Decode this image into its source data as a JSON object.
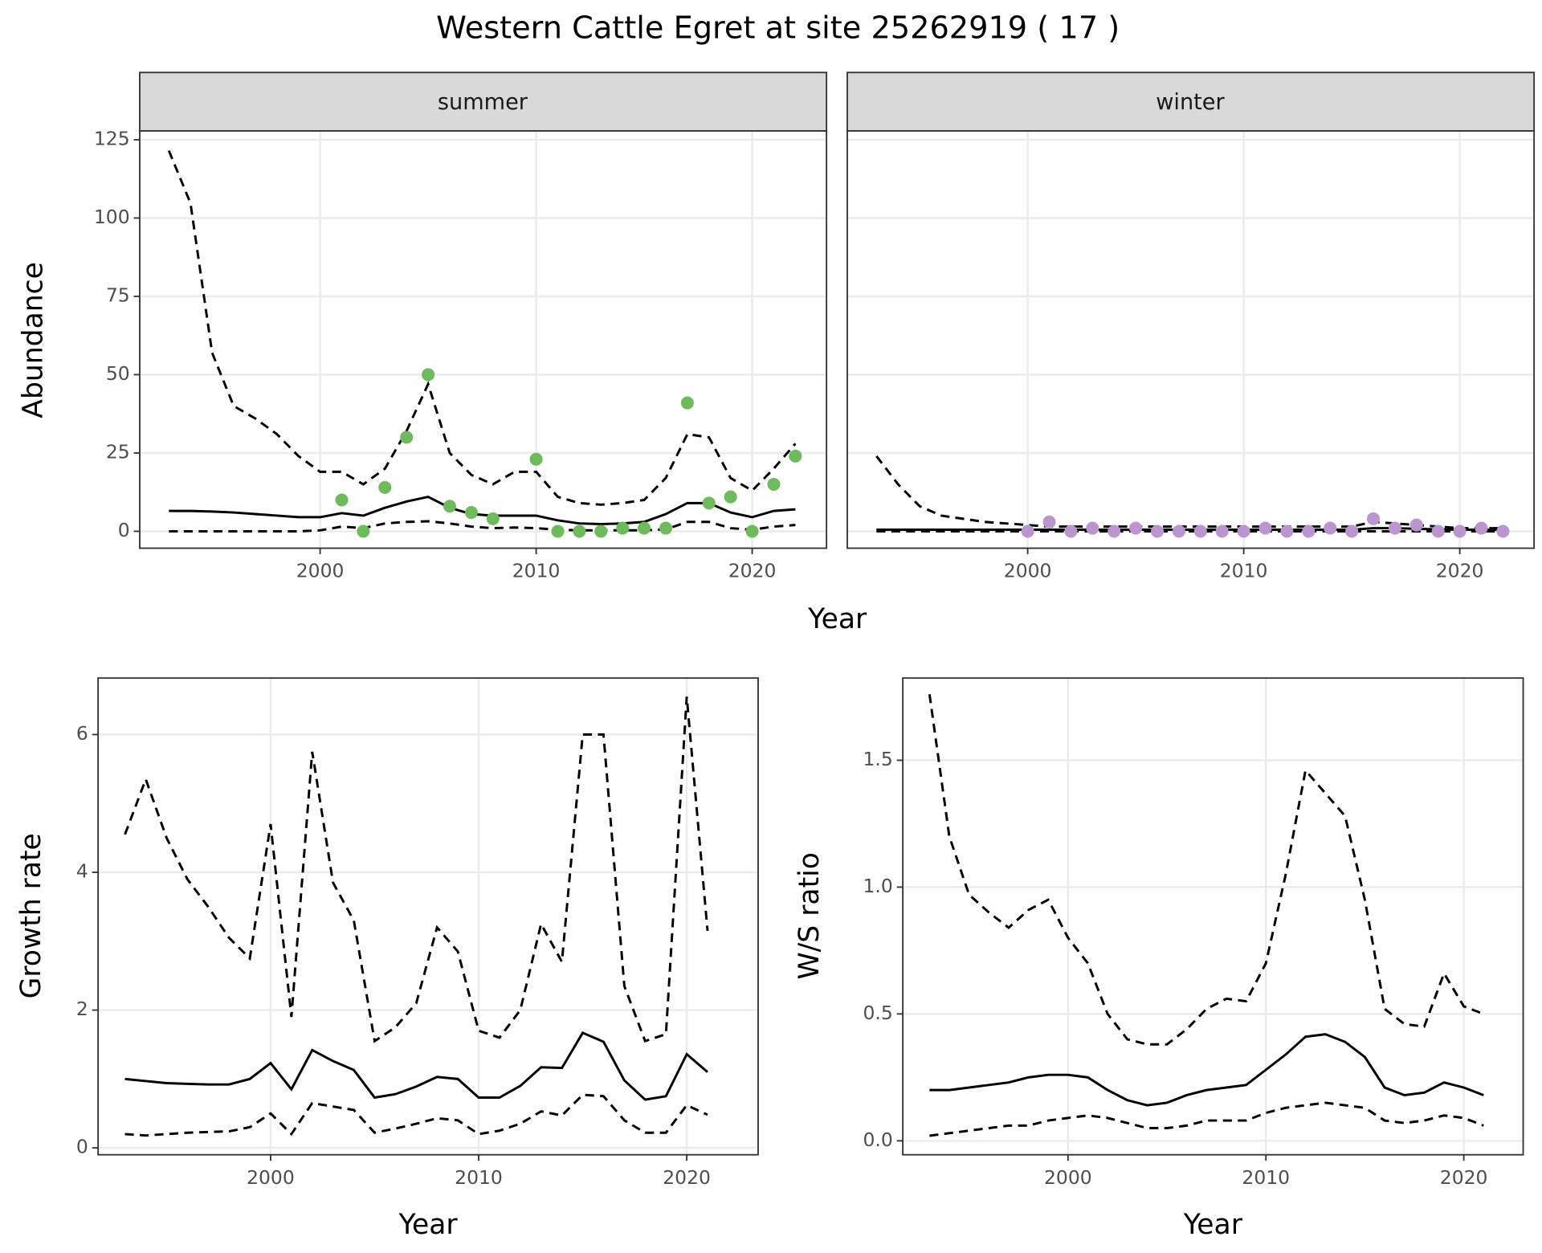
{
  "chart_data": [
    {
      "type": "line",
      "title": "Western Cattle Egret at site 25262919 ( 17 )",
      "xlabel": "Year",
      "ylabel": "Abundance",
      "xlim": [
        1991.65,
        2023.44
      ],
      "ylim": [
        -5.4,
        127.8
      ],
      "xticks": [
        2000,
        2010,
        2020
      ],
      "yticks": [
        0,
        25,
        50,
        75,
        100,
        125
      ],
      "grid": true,
      "x": [
        1993,
        1994,
        1995,
        1996,
        1997,
        1998,
        1999,
        2000,
        2001,
        2002,
        2003,
        2004,
        2005,
        2006,
        2007,
        2008,
        2009,
        2010,
        2011,
        2012,
        2013,
        2014,
        2015,
        2016,
        2017,
        2018,
        2019,
        2020,
        2021,
        2022
      ],
      "facets": [
        {
          "label": "summer",
          "series": [
            {
              "type": "line",
              "dash": "dashed",
              "color": "#000000",
              "values": [
                121.5,
                104.7,
                57,
                40,
                36,
                31,
                24,
                19,
                19,
                15,
                20,
                32,
                47,
                25,
                18,
                15,
                19,
                19,
                11,
                9,
                8.5,
                9,
                10,
                17,
                31,
                30,
                17,
                13,
                20,
                28
              ]
            },
            {
              "type": "line",
              "dash": "solid",
              "color": "#000000",
              "values": [
                6.5,
                6.5,
                6.3,
                6,
                5.5,
                5,
                4.5,
                4.5,
                5.8,
                5,
                7.5,
                9.5,
                11,
                7.5,
                5.5,
                5,
                5,
                5,
                3.5,
                2.5,
                2.3,
                2.5,
                3,
                5.5,
                9,
                9,
                6,
                4.5,
                6.5,
                7
              ]
            },
            {
              "type": "line",
              "dash": "dashed",
              "color": "#000000",
              "values": [
                0,
                0,
                0,
                0,
                0,
                0,
                0,
                0.3,
                1.5,
                1,
                2.5,
                3,
                3.2,
                2.5,
                1.5,
                1,
                1.2,
                1,
                0.5,
                0.3,
                0.3,
                0.3,
                0.3,
                0.6,
                3,
                3,
                1,
                0.5,
                1.5,
                2
              ]
            },
            {
              "type": "scatter",
              "color": "#6dbb5a",
              "values": [
                null,
                null,
                null,
                null,
                null,
                null,
                null,
                null,
                10,
                0,
                14,
                30,
                50,
                8,
                6,
                4,
                null,
                23,
                0,
                0,
                0,
                1,
                1,
                1,
                41,
                9,
                11,
                0,
                15,
                24
              ]
            }
          ]
        },
        {
          "label": "winter",
          "series": [
            {
              "type": "line",
              "dash": "dashed",
              "color": "#000000",
              "values": [
                24,
                15,
                8,
                5,
                4,
                3,
                2.5,
                2,
                1.5,
                1.5,
                1.5,
                1.5,
                1.5,
                1.5,
                1.5,
                1.5,
                1.5,
                1.5,
                1.5,
                1.5,
                1.5,
                1.5,
                1.5,
                3,
                2.5,
                2,
                1.5,
                1,
                1,
                1
              ]
            },
            {
              "type": "line",
              "dash": "solid",
              "color": "#000000",
              "values": [
                0.5,
                0.5,
                0.5,
                0.5,
                0.5,
                0.5,
                0.5,
                0.5,
                0.5,
                0.5,
                0.5,
                0.5,
                0.5,
                0.5,
                0.5,
                0.5,
                0.5,
                0.5,
                0.5,
                0.5,
                0.5,
                0.5,
                0.5,
                1,
                1,
                0.8,
                0.6,
                0.5,
                0.5,
                0.5
              ]
            },
            {
              "type": "line",
              "dash": "dashed",
              "color": "#000000",
              "values": [
                0,
                0,
                0,
                0,
                0,
                0,
                0,
                0,
                0,
                0,
                0,
                0,
                0,
                0,
                0,
                0,
                0,
                0,
                0,
                0,
                0,
                0,
                0,
                0,
                0,
                0,
                0,
                0,
                0,
                0
              ]
            },
            {
              "type": "scatter",
              "color": "#bb95cf",
              "values": [
                null,
                null,
                null,
                null,
                null,
                null,
                null,
                0,
                3,
                0,
                1,
                0,
                1,
                0,
                0,
                0,
                0,
                0,
                1,
                0,
                0,
                1,
                0,
                4,
                1,
                2,
                0,
                0,
                1,
                0
              ]
            }
          ]
        }
      ]
    },
    {
      "type": "line",
      "xlabel": "Year",
      "ylabel": "Growth rate",
      "xlim": [
        1991.71,
        2023.43
      ],
      "ylim": [
        -0.1,
        6.82
      ],
      "xticks": [
        2000,
        2010,
        2020
      ],
      "yticks": [
        0,
        2,
        4,
        6
      ],
      "grid": true,
      "x": [
        1993,
        1994,
        1995,
        1996,
        1997,
        1998,
        1999,
        2000,
        2001,
        2002,
        2003,
        2004,
        2005,
        2006,
        2007,
        2008,
        2009,
        2010,
        2011,
        2012,
        2013,
        2014,
        2015,
        2016,
        2017,
        2018,
        2019,
        2020,
        2021
      ],
      "series": [
        {
          "type": "line",
          "dash": "dashed",
          "color": "#000000",
          "values": [
            4.55,
            5.35,
            4.5,
            3.9,
            3.5,
            3.05,
            2.75,
            4.7,
            1.9,
            5.75,
            3.85,
            3.3,
            1.55,
            1.75,
            2.1,
            3.2,
            2.85,
            1.7,
            1.6,
            2.0,
            3.25,
            2.7,
            6.0,
            6.0,
            2.35,
            1.55,
            1.65,
            6.55,
            3.15
          ]
        },
        {
          "type": "line",
          "dash": "solid",
          "color": "#000000",
          "values": [
            1.0,
            0.97,
            0.94,
            0.93,
            0.92,
            0.92,
            1.0,
            1.23,
            0.85,
            1.42,
            1.26,
            1.13,
            0.73,
            0.78,
            0.89,
            1.03,
            1.0,
            0.73,
            0.73,
            0.9,
            1.17,
            1.16,
            1.67,
            1.54,
            0.98,
            0.7,
            0.75,
            1.36,
            1.1
          ]
        },
        {
          "type": "line",
          "dash": "dashed",
          "color": "#000000",
          "values": [
            0.2,
            0.18,
            0.2,
            0.22,
            0.23,
            0.24,
            0.3,
            0.5,
            0.2,
            0.65,
            0.6,
            0.55,
            0.22,
            0.28,
            0.35,
            0.43,
            0.4,
            0.2,
            0.25,
            0.35,
            0.53,
            0.47,
            0.77,
            0.75,
            0.4,
            0.22,
            0.22,
            0.62,
            0.48
          ]
        }
      ]
    },
    {
      "type": "line",
      "xlabel": "Year",
      "ylabel": "W/S ratio",
      "xlim": [
        1991.65,
        2023.0
      ],
      "ylim": [
        -0.055,
        1.824
      ],
      "xticks": [
        2000,
        2010,
        2020
      ],
      "yticks": [
        {
          "value": 0,
          "label": "0.0"
        },
        0.5,
        {
          "value": 1,
          "label": "1.0"
        },
        1.5
      ],
      "grid": true,
      "x": [
        1993,
        1994,
        1995,
        1996,
        1997,
        1998,
        1999,
        2000,
        2001,
        2002,
        2003,
        2004,
        2005,
        2006,
        2007,
        2008,
        2009,
        2010,
        2011,
        2012,
        2013,
        2014,
        2015,
        2016,
        2017,
        2018,
        2019,
        2020,
        2021
      ],
      "series": [
        {
          "type": "line",
          "dash": "dashed",
          "color": "#000000",
          "values": [
            1.76,
            1.2,
            0.97,
            0.9,
            0.84,
            0.91,
            0.95,
            0.8,
            0.7,
            0.5,
            0.4,
            0.38,
            0.38,
            0.44,
            0.52,
            0.56,
            0.55,
            0.7,
            1.05,
            1.46,
            1.37,
            1.28,
            0.95,
            0.52,
            0.46,
            0.45,
            0.66,
            0.53,
            0.5
          ]
        },
        {
          "type": "line",
          "dash": "solid",
          "color": "#000000",
          "values": [
            0.2,
            0.2,
            0.21,
            0.22,
            0.23,
            0.25,
            0.26,
            0.26,
            0.25,
            0.2,
            0.16,
            0.14,
            0.15,
            0.18,
            0.2,
            0.21,
            0.22,
            0.28,
            0.34,
            0.41,
            0.42,
            0.39,
            0.33,
            0.21,
            0.18,
            0.19,
            0.23,
            0.21,
            0.18
          ]
        },
        {
          "type": "line",
          "dash": "dashed",
          "color": "#000000",
          "values": [
            0.02,
            0.03,
            0.04,
            0.05,
            0.06,
            0.06,
            0.08,
            0.09,
            0.1,
            0.09,
            0.07,
            0.05,
            0.05,
            0.06,
            0.08,
            0.08,
            0.08,
            0.11,
            0.13,
            0.14,
            0.15,
            0.14,
            0.13,
            0.08,
            0.07,
            0.08,
            0.1,
            0.09,
            0.06
          ]
        }
      ]
    }
  ]
}
